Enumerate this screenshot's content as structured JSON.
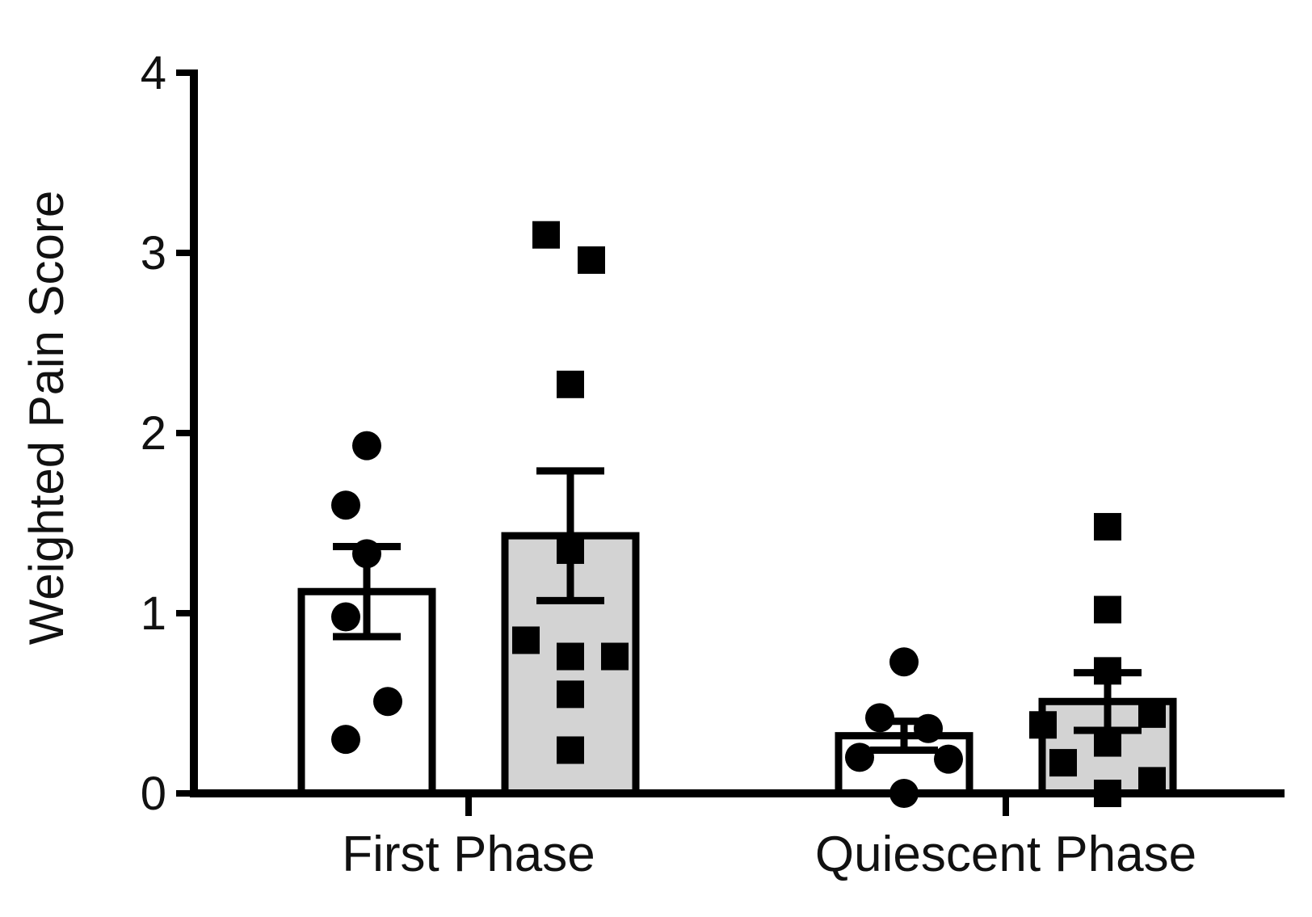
{
  "chart_data": {
    "type": "bar",
    "ylabel": "Weighted Pain Score",
    "xlabel": "",
    "ylim": [
      0,
      4
    ],
    "yticks": [
      0,
      1,
      2,
      3,
      4
    ],
    "categories": [
      "First Phase",
      "Quiescent Phase"
    ],
    "grid": false,
    "legend": "none",
    "series": [
      {
        "fill": "#ffffff",
        "marker": "circle",
        "values": [
          1.12,
          0.32
        ],
        "errors": [
          0.25,
          0.08
        ],
        "points": [
          [
            1.93,
            1.6,
            1.33,
            0.98,
            0.51,
            0.3
          ],
          [
            0.73,
            0.42,
            0.36,
            0.2,
            0.19,
            0.0
          ]
        ]
      },
      {
        "fill": "#d3d3d3",
        "marker": "square",
        "values": [
          1.43,
          0.51
        ],
        "errors": [
          0.36,
          0.16
        ],
        "points": [
          [
            3.1,
            2.96,
            2.27,
            1.35,
            0.85,
            0.76,
            0.76,
            0.55,
            0.24
          ],
          [
            1.48,
            1.02,
            0.68,
            0.44,
            0.38,
            0.28,
            0.17,
            0.07,
            0.0
          ]
        ]
      }
    ]
  }
}
